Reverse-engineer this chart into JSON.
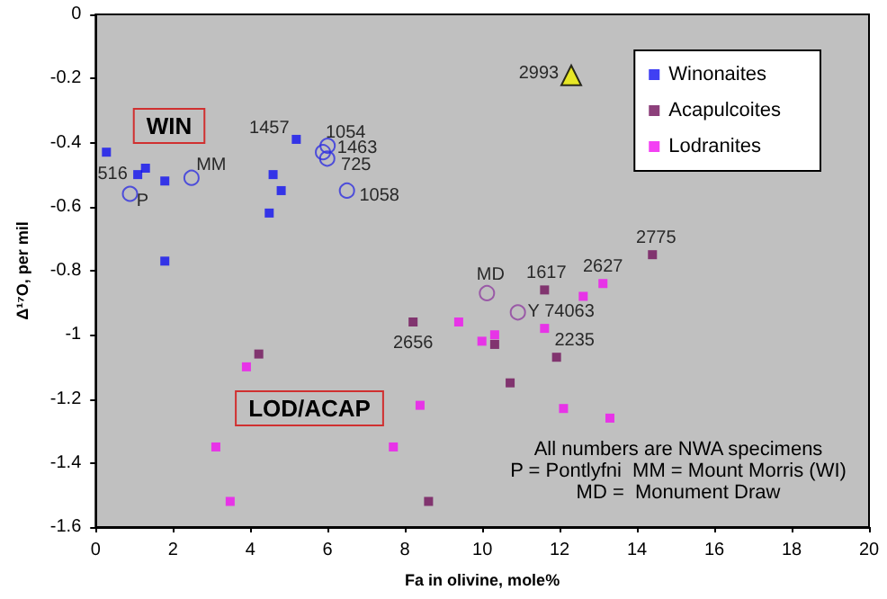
{
  "chart_data": {
    "type": "scatter",
    "xlabel": "Fa in olivine, mole%",
    "ylabel": "Δ¹⁷O, per mil",
    "xlim": [
      0,
      20
    ],
    "xticks": [
      0,
      2,
      4,
      6,
      8,
      10,
      12,
      14,
      16,
      18,
      20
    ],
    "ylim": [
      -1.6,
      0
    ],
    "yticks": [
      0,
      -0.2,
      -0.4,
      -0.6,
      -0.8,
      -1,
      -1.2,
      -1.4,
      -1.6
    ],
    "legend": "top right",
    "series": [
      {
        "name": "Winonaites",
        "color": "#1010f0",
        "marker": "square",
        "x": [
          0.28,
          1.09,
          1.29,
          1.79,
          1.79,
          5.19,
          4.59,
          4.8,
          4.49
        ],
        "values": [
          -0.43,
          -0.5,
          -0.48,
          -0.52,
          -0.77,
          -0.39,
          -0.5,
          -0.55,
          -0.62
        ]
      },
      {
        "color": "#3030e0",
        "marker": "circle",
        "x": [
          0.89,
          2.48,
          6.0,
          5.88,
          5.99,
          6.5
        ],
        "values": [
          -0.56,
          -0.51,
          -0.41,
          -0.43,
          -0.45,
          -0.55
        ]
      },
      {
        "name": "Acapulcoites",
        "color": "#70105a",
        "marker": "square",
        "x": [
          14.4,
          11.61,
          8.21,
          4.22,
          8.61,
          10.32,
          11.92,
          10.72
        ],
        "values": [
          -0.75,
          -0.86,
          -0.96,
          -1.06,
          -1.52,
          -1.03,
          -1.07,
          -1.15
        ]
      },
      {
        "color": "#9040a0",
        "marker": "circle",
        "x": [
          10.12,
          10.92
        ],
        "values": [
          -0.87,
          -0.93
        ]
      },
      {
        "name": "Lodranites",
        "color": "#f010f0",
        "marker": "square",
        "x": [
          13.12,
          12.61,
          3.9,
          3.11,
          3.48,
          8.39,
          7.7,
          9.39,
          9.99,
          10.32,
          11.61,
          12.1,
          13.3
        ],
        "values": [
          -0.84,
          -0.88,
          -1.1,
          -1.35,
          -1.52,
          -1.22,
          -1.35,
          -0.96,
          -1.02,
          -1.0,
          -0.98,
          -1.23,
          -1.26
        ]
      },
      {
        "color": "#f0f000",
        "marker": "triangle",
        "x": [
          12.3
        ],
        "values": [
          -0.19
        ]
      }
    ],
    "annotations": [
      {
        "text": "516",
        "x": 1.09,
        "y": -0.5
      },
      {
        "text": "P",
        "x": 0.89,
        "y": -0.56
      },
      {
        "text": "MM",
        "x": 2.48,
        "y": -0.51
      },
      {
        "text": "1457",
        "x": 5.19,
        "y": -0.39
      },
      {
        "text": "1054",
        "x": 6.0,
        "y": -0.41
      },
      {
        "text": "1463",
        "x": 5.88,
        "y": -0.43
      },
      {
        "text": "725",
        "x": 5.99,
        "y": -0.45
      },
      {
        "text": "1058",
        "x": 6.5,
        "y": -0.55
      },
      {
        "text": "2993",
        "x": 12.3,
        "y": -0.19
      },
      {
        "text": "2775",
        "x": 14.4,
        "y": -0.75
      },
      {
        "text": "1617",
        "x": 11.61,
        "y": -0.86
      },
      {
        "text": "2627",
        "x": 13.12,
        "y": -0.84
      },
      {
        "text": "MD",
        "x": 10.12,
        "y": -0.87
      },
      {
        "text": "Y 74063",
        "x": 10.92,
        "y": -0.93
      },
      {
        "text": "2235",
        "x": 11.92,
        "y": -1.07
      },
      {
        "text": "2656",
        "x": 8.21,
        "y": -0.96
      },
      "WIN",
      "LOD/ACAP",
      "All numbers are NWA specimens\nP = Pontlyfni  MM = Mount Morris (WI)\nMD =  Monument Draw"
    ]
  }
}
